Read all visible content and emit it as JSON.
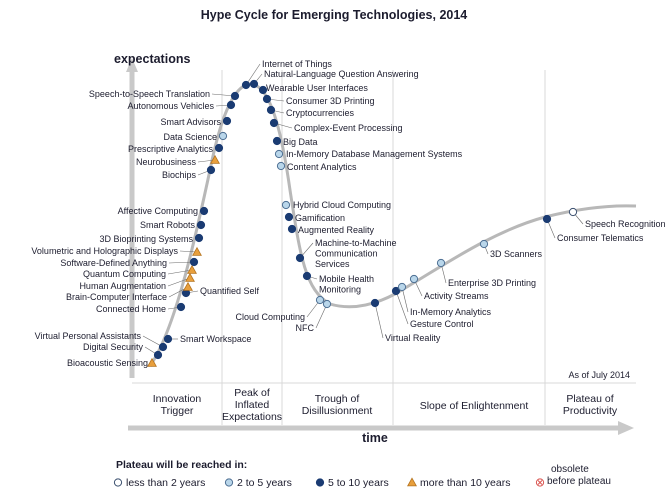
{
  "chart_data": {
    "type": "scatter",
    "title": "Hype Cycle for Emerging Technologies, 2014",
    "ylabel": "expectations",
    "xlabel": "time",
    "as_of": "As of July 2014",
    "phases": [
      "Innovation Trigger",
      "Peak of Inflated Expectations",
      "Trough of Disillusionment",
      "Slope of Enlightenment",
      "Plateau of Productivity"
    ],
    "legend": {
      "title": "Plateau will be reached in:",
      "items": [
        {
          "key": "lt2",
          "label": "less than 2 years"
        },
        {
          "key": "2to5",
          "label": "2 to 5 years"
        },
        {
          "key": "5to10",
          "label": "5 to 10 years"
        },
        {
          "key": "gt10",
          "label": "more than 10 years"
        },
        {
          "key": "obs",
          "label": "obsolete before plateau"
        }
      ]
    },
    "technologies": [
      {
        "name": "Bioacoustic Sensing",
        "plateau": "gt10"
      },
      {
        "name": "Digital Security",
        "plateau": "5to10"
      },
      {
        "name": "Virtual Personal Assistants",
        "plateau": "5to10"
      },
      {
        "name": "Smart Workspace",
        "plateau": "5to10"
      },
      {
        "name": "Connected Home",
        "plateau": "5to10"
      },
      {
        "name": "Quantified Self",
        "plateau": "5to10"
      },
      {
        "name": "Brain-Computer Interface",
        "plateau": "gt10"
      },
      {
        "name": "Human Augmentation",
        "plateau": "gt10"
      },
      {
        "name": "Quantum Computing",
        "plateau": "gt10"
      },
      {
        "name": "Software-Defined Anything",
        "plateau": "5to10"
      },
      {
        "name": "Volumetric and Holographic Displays",
        "plateau": "gt10"
      },
      {
        "name": "3D Bioprinting Systems",
        "plateau": "5to10"
      },
      {
        "name": "Smart Robots",
        "plateau": "5to10"
      },
      {
        "name": "Affective Computing",
        "plateau": "5to10"
      },
      {
        "name": "Biochips",
        "plateau": "5to10"
      },
      {
        "name": "Neurobusiness",
        "plateau": "gt10"
      },
      {
        "name": "Prescriptive Analytics",
        "plateau": "5to10"
      },
      {
        "name": "Data Science",
        "plateau": "2to5"
      },
      {
        "name": "Smart Advisors",
        "plateau": "5to10"
      },
      {
        "name": "Autonomous Vehicles",
        "plateau": "5to10"
      },
      {
        "name": "Speech-to-Speech Translation",
        "plateau": "5to10"
      },
      {
        "name": "Internet of Things",
        "plateau": "5to10"
      },
      {
        "name": "Natural-Language Question Answering",
        "plateau": "5to10"
      },
      {
        "name": "Wearable User Interfaces",
        "plateau": "5to10"
      },
      {
        "name": "Consumer 3D Printing",
        "plateau": "5to10"
      },
      {
        "name": "Cryptocurrencies",
        "plateau": "5to10"
      },
      {
        "name": "Complex-Event Processing",
        "plateau": "5to10"
      },
      {
        "name": "Big Data",
        "plateau": "5to10"
      },
      {
        "name": "In-Memory Database Management Systems",
        "plateau": "2to5"
      },
      {
        "name": "Content Analytics",
        "plateau": "2to5"
      },
      {
        "name": "Hybrid Cloud Computing",
        "plateau": "2to5"
      },
      {
        "name": "Gamification",
        "plateau": "5to10"
      },
      {
        "name": "Augmented Reality",
        "plateau": "5to10"
      },
      {
        "name": "Machine-to-Machine Communication Services",
        "plateau": "5to10"
      },
      {
        "name": "Mobile Health Monitoring",
        "plateau": "5to10"
      },
      {
        "name": "Cloud Computing",
        "plateau": "2to5"
      },
      {
        "name": "NFC",
        "plateau": "2to5"
      },
      {
        "name": "Virtual Reality",
        "plateau": "5to10"
      },
      {
        "name": "Gesture Control",
        "plateau": "5to10"
      },
      {
        "name": "In-Memory Analytics",
        "plateau": "2to5"
      },
      {
        "name": "Activity Streams",
        "plateau": "2to5"
      },
      {
        "name": "Enterprise 3D Printing",
        "plateau": "2to5"
      },
      {
        "name": "3D Scanners",
        "plateau": "2to5"
      },
      {
        "name": "Consumer Telematics",
        "plateau": "5to10"
      },
      {
        "name": "Speech Recognition",
        "plateau": "lt2"
      }
    ]
  }
}
